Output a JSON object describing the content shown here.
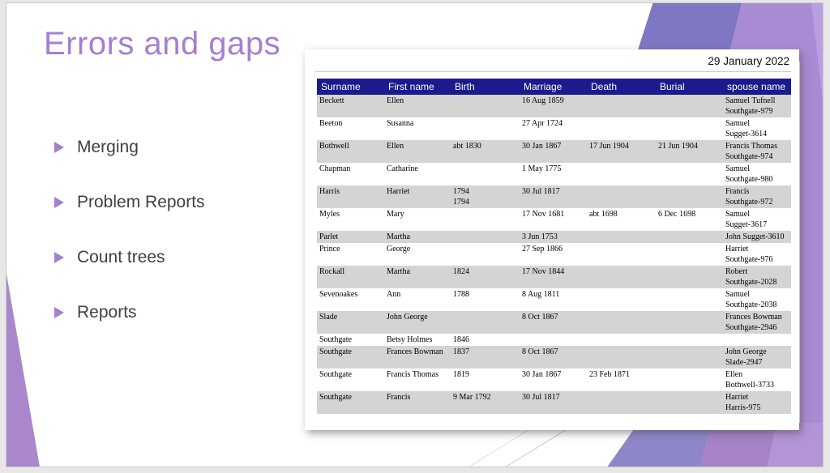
{
  "slide": {
    "title": "Errors and gaps",
    "bullets": [
      {
        "label": "Merging"
      },
      {
        "label": "Problem Reports"
      },
      {
        "label": "Count trees"
      },
      {
        "label": "Reports"
      }
    ],
    "panel": {
      "date": "29 January 2022",
      "table": {
        "headers": [
          "Surname",
          "First name",
          "Birth",
          "Marriage",
          "Death",
          "Burial",
          "spouse name"
        ],
        "rows": [
          [
            "Beckett",
            "Ellen",
            "",
            "16 Aug 1859",
            "",
            "",
            "Samuel Tufnell\nSouthgate-979"
          ],
          [
            "Beeton",
            "Susanna",
            "",
            "27 Apr 1724",
            "",
            "",
            "Samuel\nSugget-3614"
          ],
          [
            "Bothwell",
            "Ellen",
            "abt 1830",
            "30 Jan 1867",
            "17 Jun 1904",
            "21 Jun 1904",
            "Francis Thomas\nSouthgate-974"
          ],
          [
            "Chapman",
            "Catharine",
            "",
            "1 May 1775",
            "",
            "",
            "Samuel\nSouthgate-980"
          ],
          [
            "Harris",
            "Harriet",
            "1794\n1794",
            "30 Jul 1817",
            "",
            "",
            "Francis\nSouthgate-972"
          ],
          [
            "Myles",
            "Mary",
            "",
            "17 Nov 1681",
            "abt 1698",
            "6 Dec 1698",
            "Samuel\nSugget-3617"
          ],
          [
            "Parlet",
            "Martha",
            "",
            "3 Jun 1753",
            "",
            "",
            "John Sugget-3610"
          ],
          [
            "Prince",
            "George",
            "",
            "27 Sep 1866",
            "",
            "",
            "Harriet\nSouthgate-976"
          ],
          [
            "Rockall",
            "Martha",
            "1824",
            "17 Nov 1844",
            "",
            "",
            "Robert\nSouthgate-2028"
          ],
          [
            "Sevenoakes",
            "Ann",
            "1788",
            "8 Aug 1811",
            "",
            "",
            "Samuel\nSouthgate-2038"
          ],
          [
            "Slade",
            "John George",
            "",
            "8 Oct 1867",
            "",
            "",
            "Frances Bowman\nSouthgate-2946"
          ],
          [
            "Southgate",
            "Betsy Holmes",
            "1846",
            "",
            "",
            "",
            ""
          ],
          [
            "Southgate",
            "Frances Bowman",
            "1837",
            "8 Oct 1867",
            "",
            "",
            "John George\nSlade-2947"
          ],
          [
            "Southgate",
            "Francis Thomas",
            "1819",
            "30 Jan 1867",
            "23 Feb 1871",
            "",
            "Ellen\nBothwell-3733"
          ],
          [
            "Southgate",
            "Francis",
            "9 Mar 1792",
            "30 Jul 1817",
            "",
            "",
            "Harriet\nHarris-975"
          ]
        ]
      }
    },
    "colors": {
      "title": "#a57fd0",
      "bullet": "#a57fd0",
      "body_text": "#404040",
      "header_bg": "#1b1b8e",
      "header_text": "#ffffff",
      "row_alt": "#d4d4d4",
      "rule": "#a8d6e8",
      "deco_blue": "#7e77c3",
      "deco_blue2": "#8d86c9",
      "deco_purple": "#a98bd3",
      "deco_purple2": "#a583c6",
      "deco_light": "#b79fe0",
      "wedge": "#aa87cb"
    }
  }
}
